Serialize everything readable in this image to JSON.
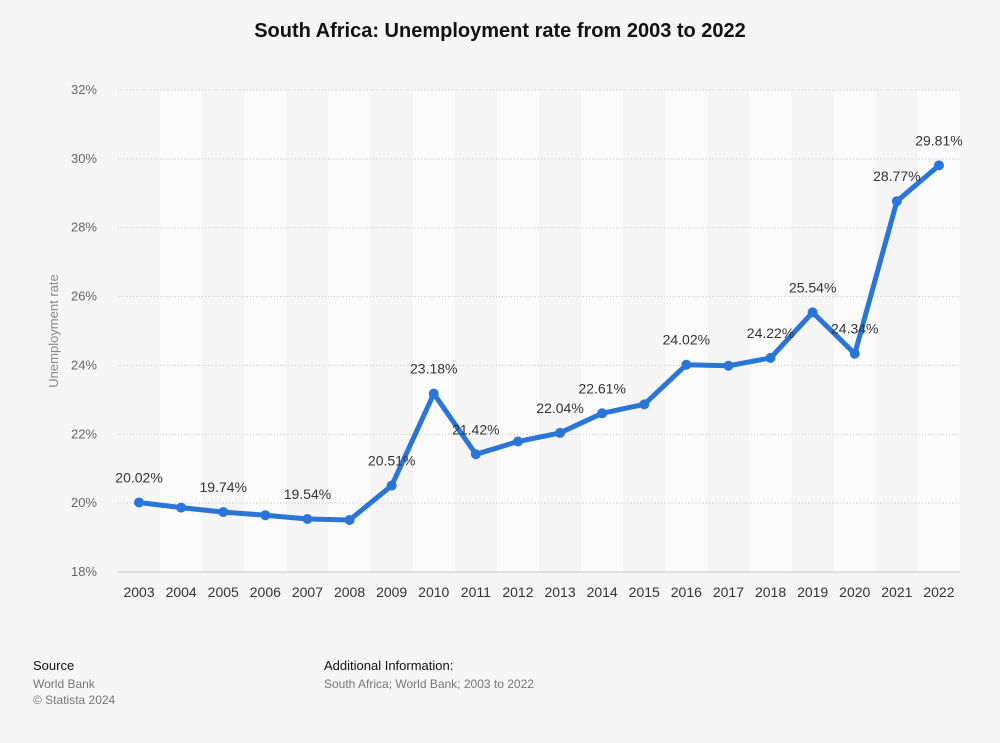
{
  "chart_data": {
    "type": "line",
    "title": "South Africa: Unemployment rate from 2003 to 2022",
    "ylabel": "Unemployment rate",
    "xlabel": "",
    "x": [
      "2003",
      "2004",
      "2005",
      "2006",
      "2007",
      "2008",
      "2009",
      "2010",
      "2011",
      "2012",
      "2013",
      "2014",
      "2015",
      "2016",
      "2017",
      "2018",
      "2019",
      "2020",
      "2021",
      "2022"
    ],
    "series": [
      {
        "values": [
          20.02,
          19.87,
          19.74,
          19.65,
          19.54,
          19.51,
          20.51,
          23.18,
          21.42,
          21.79,
          22.04,
          22.61,
          22.87,
          24.02,
          23.99,
          24.22,
          25.54,
          24.34,
          28.77,
          29.81
        ]
      }
    ],
    "data_labels": [
      {
        "index": 0,
        "text": "20.02%"
      },
      {
        "index": 2,
        "text": "19.74%"
      },
      {
        "index": 4,
        "text": "19.54%"
      },
      {
        "index": 6,
        "text": "20.51%"
      },
      {
        "index": 7,
        "text": "23.18%"
      },
      {
        "index": 8,
        "text": "21.42%"
      },
      {
        "index": 10,
        "text": "22.04%"
      },
      {
        "index": 11,
        "text": "22.61%"
      },
      {
        "index": 13,
        "text": "24.02%"
      },
      {
        "index": 15,
        "text": "24.22%"
      },
      {
        "index": 16,
        "text": "25.54%"
      },
      {
        "index": 17,
        "text": "24.34%"
      },
      {
        "index": 18,
        "text": "28.77%"
      },
      {
        "index": 19,
        "text": "29.81%"
      }
    ],
    "y_ticks": [
      18,
      20,
      22,
      24,
      26,
      28,
      30,
      32
    ],
    "y_tick_labels": [
      "18%",
      "20%",
      "22%",
      "24%",
      "26%",
      "28%",
      "30%",
      "32%"
    ],
    "ylim": [
      18,
      32
    ],
    "grid": true,
    "legend": "none",
    "line_color": "#2a75d8"
  },
  "footer": {
    "source_heading": "Source",
    "source_lines": [
      "World Bank",
      "© Statista 2024"
    ],
    "info_heading": "Additional Information:",
    "info_line": "South Africa; World Bank; 2003 to 2022"
  }
}
